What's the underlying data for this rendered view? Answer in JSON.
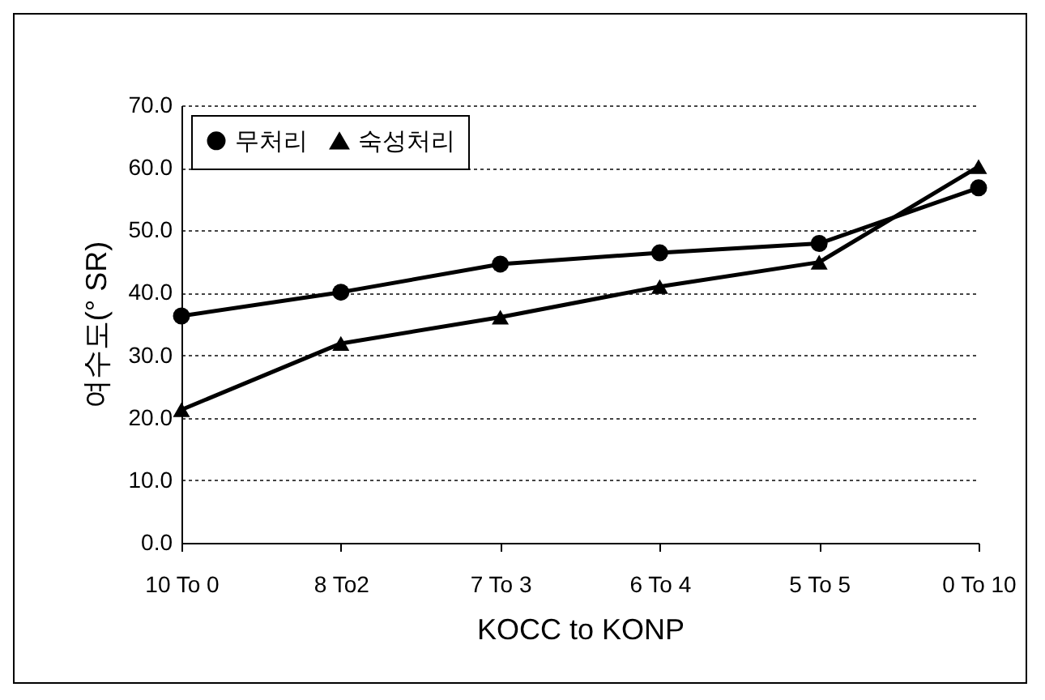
{
  "chart_data": {
    "type": "line",
    "xlabel": "KOCC to KONP",
    "ylabel": "여수도(° SR)",
    "categories": [
      "10 To 0",
      "8 To2",
      "7 To 3",
      "6 To 4",
      "5 To 5",
      "0 To 10"
    ],
    "series": [
      {
        "name": "무처리",
        "color": "#000000",
        "marker": "circle",
        "values": [
          36.3,
          40.1,
          44.6,
          46.4,
          47.9,
          56.8
        ]
      },
      {
        "name": "숙성처리",
        "color": "#000000",
        "marker": "triangle",
        "values": [
          21.3,
          31.9,
          36.1,
          41.0,
          44.9,
          60.2
        ]
      }
    ],
    "ylim": [
      0,
      70
    ],
    "yticks": [
      {
        "value": 0,
        "label": "0.0"
      },
      {
        "value": 10,
        "label": "10.0"
      },
      {
        "value": 20,
        "label": "20.0"
      },
      {
        "value": 30,
        "label": "30.0"
      },
      {
        "value": 40,
        "label": "40.0"
      },
      {
        "value": 50,
        "label": "50.0"
      },
      {
        "value": 60,
        "label": "60.0"
      },
      {
        "value": 70,
        "label": "70.0"
      }
    ],
    "grid": "y",
    "legend": "top left",
    "line_style": "solid"
  }
}
